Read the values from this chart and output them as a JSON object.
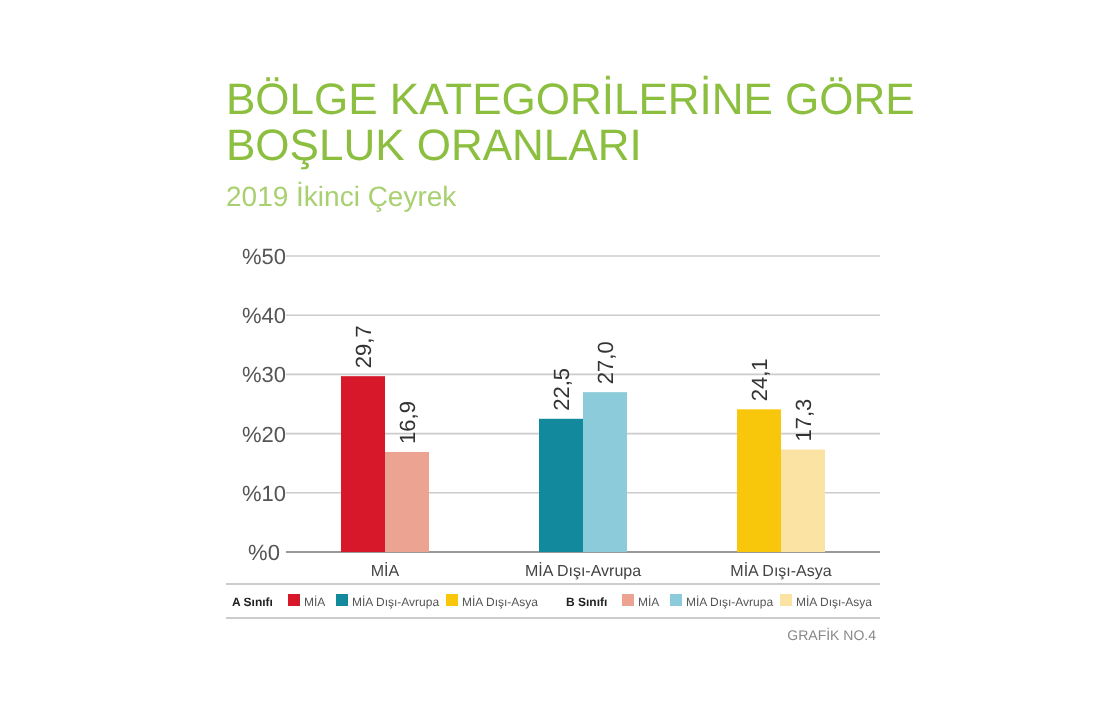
{
  "chart_data": {
    "type": "bar",
    "title": "BÖLGE KATEGORİLERİNE GÖRE BOŞLUK ORANLARI",
    "subtitle": "2019 İkinci Çeyrek",
    "categories": [
      "MİA",
      "MİA Dışı-Avrupa",
      "MİA Dışı-Asya"
    ],
    "series": [
      {
        "name": "A Sınıfı",
        "colors": [
          "#d7182a",
          "#12899d",
          "#f8c60b"
        ],
        "values": [
          29.7,
          22.5,
          24.1
        ],
        "value_labels": [
          "29,7",
          "22,5",
          "24,1"
        ]
      },
      {
        "name": "B Sınıfı",
        "colors": [
          "#eca392",
          "#8ccbd9",
          "#fbe3a4"
        ],
        "values": [
          16.9,
          27.0,
          17.3
        ],
        "value_labels": [
          "16,9",
          "27,0",
          "17,3"
        ]
      }
    ],
    "ylim": [
      0,
      50
    ],
    "yticks": [
      {
        "value": 0,
        "label": "%0"
      },
      {
        "value": 10,
        "label": "%10"
      },
      {
        "value": 20,
        "label": "%20"
      },
      {
        "value": 30,
        "label": "%30"
      },
      {
        "value": 40,
        "label": "%40"
      },
      {
        "value": 50,
        "label": "%50"
      }
    ],
    "grid": "y",
    "legend": "bottom",
    "annotations": [
      "GRAFİK NO.4"
    ]
  }
}
